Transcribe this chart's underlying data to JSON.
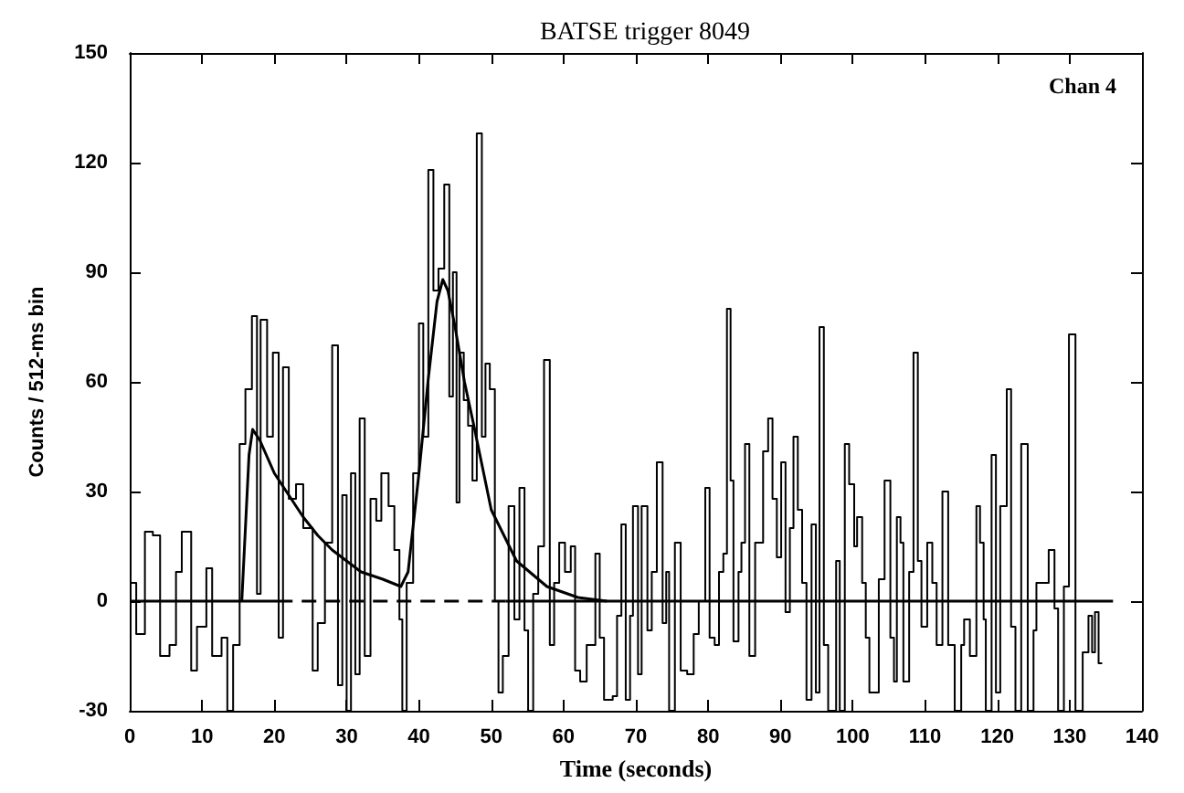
{
  "chart_data": {
    "type": "step",
    "title": "BATSE trigger 8049",
    "xlabel": "Time (seconds)",
    "ylabel": "Counts / 512-ms bin",
    "annotations": [
      "Chan 4"
    ],
    "xlim": [
      0,
      140
    ],
    "xticks": [
      0,
      10,
      20,
      30,
      40,
      50,
      60,
      70,
      80,
      90,
      100,
      110,
      120,
      130,
      140
    ],
    "ylim": [
      -30,
      150
    ],
    "yticks": [
      -30,
      0,
      30,
      60,
      90,
      120,
      150
    ],
    "marker": "none",
    "line_style": "solid",
    "series": [
      {
        "color": "#000000",
        "x": [
          0,
          0.9,
          2.1,
          3.2,
          4.2,
          5.5,
          6.4,
          7.2,
          8.5,
          9.3,
          10.6,
          11.4,
          12.7,
          13.5,
          14.3,
          15.2,
          16,
          16.9,
          17.6,
          18.1,
          19,
          19.8,
          20.6,
          21.2,
          22,
          23,
          24,
          25.3,
          26,
          27,
          28,
          28.8,
          29.4,
          30,
          30.6,
          31.2,
          31.8,
          32.5,
          33.3,
          34.1,
          34.8,
          35.8,
          36.6,
          37.3,
          37.7,
          38.3,
          39.2,
          40,
          40.6,
          41.3,
          42,
          42.7,
          43.5,
          44.2,
          44.7,
          45.2,
          45.6,
          46.2,
          46.8,
          47.4,
          48,
          48.7,
          49.2,
          49.8,
          50.5,
          51,
          51.6,
          52.4,
          53.2,
          53.9,
          54.6,
          55.1,
          55.8,
          56.5,
          57.3,
          58.1,
          58.7,
          59.4,
          60.2,
          61,
          61.6,
          62.3,
          63.2,
          64.4,
          65,
          65.6,
          66.8,
          67.4,
          68,
          68.6,
          69.2,
          69.6,
          70.3,
          70.8,
          71.6,
          72.2,
          72.9,
          73.7,
          74.2,
          74.6,
          75.4,
          76.2,
          77.1,
          78,
          78.7,
          79.6,
          80.2,
          80.9,
          81.5,
          82.1,
          82.6,
          83.1,
          83.5,
          84.2,
          84.6,
          85.1,
          85.7,
          86.5,
          87.6,
          88.3,
          88.9,
          89.5,
          90.1,
          90.7,
          91.3,
          91.8,
          92.4,
          93,
          93.6,
          94.3,
          94.9,
          95.4,
          96,
          96.6,
          97.7,
          98.2,
          98.9,
          99.5,
          100.2,
          100.6,
          101.3,
          101.8,
          102.3,
          103.6,
          104.4,
          105.2,
          105.7,
          106.1,
          106.6,
          107,
          107.8,
          108.4,
          109,
          109.5,
          110.3,
          111,
          111.6,
          112.4,
          113.2,
          114.1,
          115,
          115.4,
          116.2,
          117.1,
          117.6,
          118.1,
          118.4,
          119.2,
          119.8,
          120.4,
          121.3,
          121.9,
          122.5,
          123.3,
          124.2,
          125,
          125.4,
          127.1,
          127.9,
          128.4,
          129.2,
          129.9,
          130.8,
          131.8,
          132.6,
          133.1,
          133.5,
          134,
          134.5
        ],
        "values": [
          5,
          -9,
          19,
          18,
          -15,
          -12,
          8,
          19,
          -19,
          -7,
          9,
          -15,
          -10,
          -30,
          -12,
          43,
          58,
          78,
          2,
          77,
          45,
          68,
          -10,
          64,
          28,
          32,
          20,
          -19,
          -6,
          16,
          70,
          -23,
          29,
          -30,
          35,
          -20,
          50,
          -15,
          28,
          22,
          35,
          26,
          14,
          -5,
          -30,
          5,
          35,
          76,
          45,
          118,
          85,
          91,
          114,
          56,
          90,
          27,
          68,
          55,
          48,
          33,
          128,
          45,
          65,
          58,
          0,
          -25,
          -15,
          26,
          -5,
          31,
          -8,
          -30,
          2,
          15,
          66,
          -12,
          5,
          16,
          8,
          15,
          -19,
          -22,
          -12,
          13,
          -10,
          -27,
          -26,
          -4,
          21,
          -27,
          -4,
          26,
          -20,
          26,
          -8,
          8,
          38,
          -6,
          8,
          -30,
          16,
          -19,
          -20,
          -9,
          0,
          31,
          -10,
          -12,
          8,
          13,
          80,
          33,
          -11,
          8,
          16,
          43,
          -15,
          16,
          41,
          50,
          28,
          12,
          38,
          -3,
          20,
          45,
          25,
          5,
          -27,
          21,
          -25,
          75,
          -12,
          -30,
          11,
          -30,
          43,
          32,
          15,
          23,
          5,
          -10,
          -25,
          6,
          33,
          -10,
          -22,
          23,
          16,
          -22,
          8,
          68,
          11,
          -7,
          16,
          5,
          -12,
          30,
          -12,
          -30,
          -12,
          -5,
          -15,
          26,
          16,
          -5,
          -30,
          40,
          -25,
          26,
          58,
          -7,
          -30,
          43,
          -30,
          -8,
          5,
          14,
          -2,
          -30,
          4,
          73,
          -30,
          -14,
          -4,
          -14,
          -3,
          -17,
          -17
        ]
      },
      {
        "type": "line",
        "color": "#000000",
        "x": [
          15.5,
          16.5,
          17,
          18,
          20,
          22,
          24,
          26,
          28,
          30,
          32,
          35,
          37.5,
          38.5,
          40,
          41.3,
          42.5,
          43.3,
          44,
          45,
          46.3,
          47.6,
          50,
          53.5,
          57.7,
          62,
          66
        ],
        "values": [
          0,
          40,
          47,
          44,
          35,
          29,
          23,
          18,
          14,
          11,
          8,
          6,
          4,
          8,
          35,
          61,
          82,
          88,
          85,
          75,
          60,
          48,
          25,
          11,
          4,
          1,
          0
        ]
      },
      {
        "type": "line",
        "color": "#000000",
        "x": [
          0,
          20.5
        ],
        "values": [
          0,
          0
        ]
      },
      {
        "type": "line",
        "color": "#000000",
        "line_style": "dashed",
        "x": [
          20.5,
          52
        ],
        "values": [
          0,
          0
        ]
      },
      {
        "type": "line",
        "color": "#000000",
        "x": [
          52,
          136
        ],
        "values": [
          0,
          0
        ]
      }
    ]
  }
}
